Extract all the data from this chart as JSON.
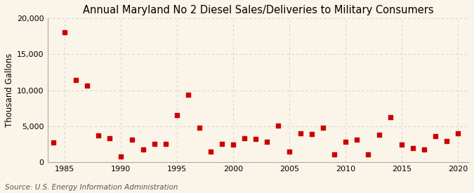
{
  "title": "Annual Maryland No 2 Diesel Sales/Deliveries to Military Consumers",
  "ylabel": "Thousand Gallons",
  "source": "Source: U.S. Energy Information Administration",
  "background_color": "#faf5e8",
  "years": [
    1984,
    1985,
    1986,
    1987,
    1988,
    1989,
    1990,
    1991,
    1992,
    1993,
    1994,
    1995,
    1996,
    1997,
    1998,
    1999,
    2000,
    2001,
    2002,
    2003,
    2004,
    2005,
    2006,
    2007,
    2008,
    2009,
    2010,
    2011,
    2012,
    2013,
    2014,
    2015,
    2016,
    2017,
    2018,
    2019,
    2020
  ],
  "values": [
    2700,
    18000,
    11400,
    10600,
    3700,
    3300,
    800,
    3100,
    1800,
    2600,
    2600,
    6500,
    9400,
    4800,
    1500,
    2600,
    2500,
    3300,
    3200,
    2800,
    5100,
    1500,
    4000,
    3900,
    4800,
    1100,
    2800,
    3100,
    1100,
    3800,
    6300,
    2500,
    2000,
    1800,
    3600,
    2900,
    4000
  ],
  "marker_color": "#cc0000",
  "marker_size": 16,
  "ylim": [
    0,
    20000
  ],
  "xlim": [
    1983.5,
    2021
  ],
  "yticks": [
    0,
    5000,
    10000,
    15000,
    20000
  ],
  "xticks": [
    1985,
    1990,
    1995,
    2000,
    2005,
    2010,
    2015,
    2020
  ],
  "grid_color": "#cccccc",
  "title_fontsize": 10.5,
  "label_fontsize": 8.5,
  "tick_fontsize": 8,
  "source_fontsize": 7.5
}
